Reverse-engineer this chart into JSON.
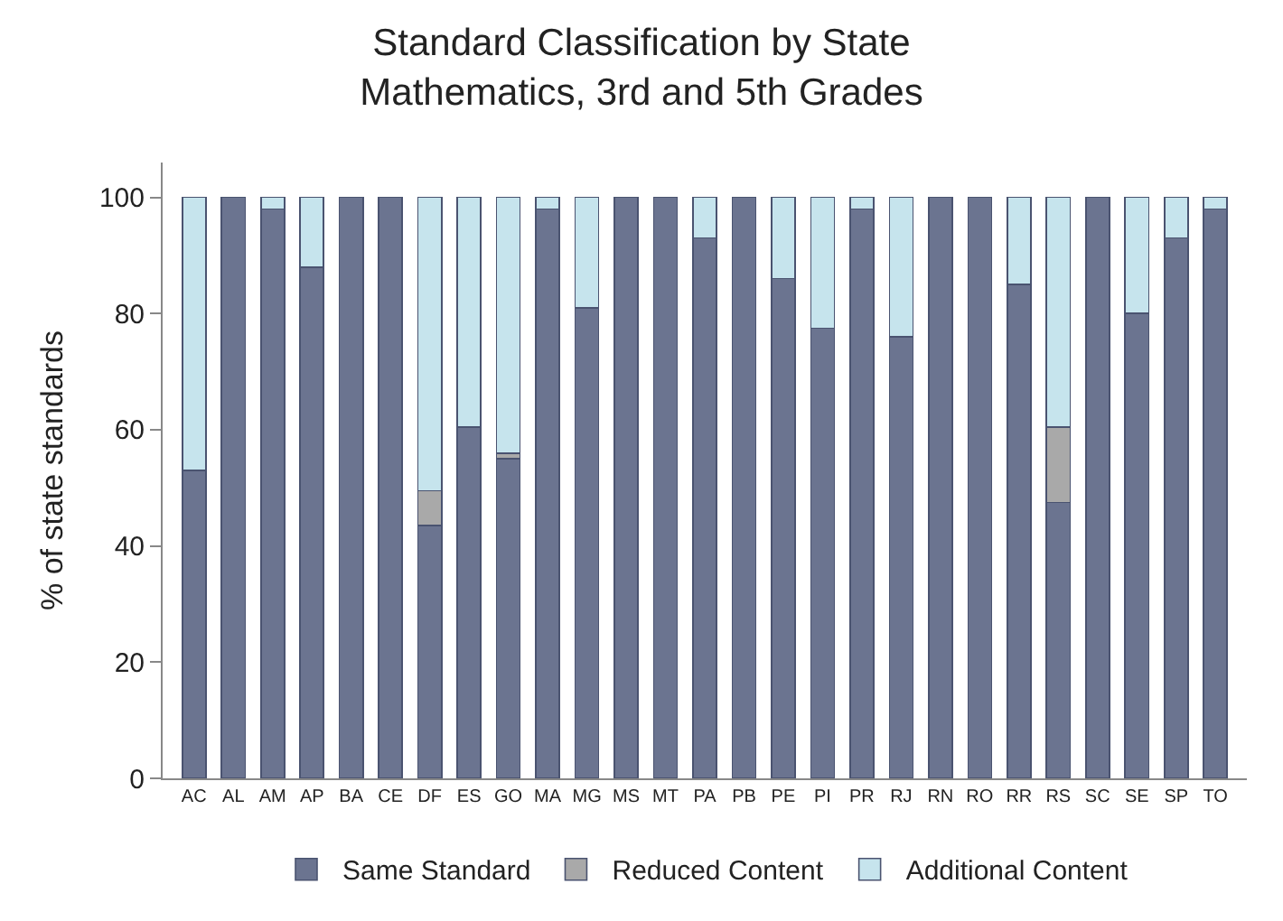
{
  "chart_data": {
    "type": "bar",
    "stacked": true,
    "title": "Standard Classification by State\nMathematics, 3rd and 5th Grades",
    "ylabel": "% of state standards",
    "categories": [
      "AC",
      "AL",
      "AM",
      "AP",
      "BA",
      "CE",
      "DF",
      "ES",
      "GO",
      "MA",
      "MG",
      "MS",
      "MT",
      "PA",
      "PB",
      "PE",
      "PI",
      "PR",
      "RJ",
      "RN",
      "RO",
      "RR",
      "RS",
      "SC",
      "SE",
      "SP",
      "TO"
    ],
    "series": [
      {
        "name": "Same Standard",
        "color": "#6b7490",
        "values": [
          53,
          100,
          98,
          88,
          100,
          100,
          43.5,
          60.5,
          55,
          98,
          81,
          100,
          100,
          93,
          100,
          86,
          77.5,
          98,
          76,
          100,
          100,
          85,
          47.5,
          100,
          80,
          93,
          98
        ]
      },
      {
        "name": "Reduced Content",
        "color": "#a9a9a9",
        "values": [
          null,
          null,
          null,
          null,
          null,
          null,
          6,
          null,
          1,
          null,
          null,
          null,
          null,
          null,
          null,
          null,
          null,
          null,
          null,
          null,
          null,
          null,
          13,
          null,
          null,
          null,
          null
        ]
      },
      {
        "name": "Additional Content",
        "color": "#c6e4ed",
        "values": [
          47,
          null,
          2,
          12,
          null,
          null,
          50.5,
          39.5,
          44,
          2,
          19,
          null,
          null,
          7,
          null,
          14,
          22.5,
          2,
          24,
          null,
          null,
          15,
          39.5,
          null,
          20,
          7,
          2
        ]
      }
    ],
    "ylim": [
      0,
      106
    ],
    "yticks": [
      0,
      20,
      40,
      60,
      80,
      100
    ],
    "legend": "bottom"
  }
}
